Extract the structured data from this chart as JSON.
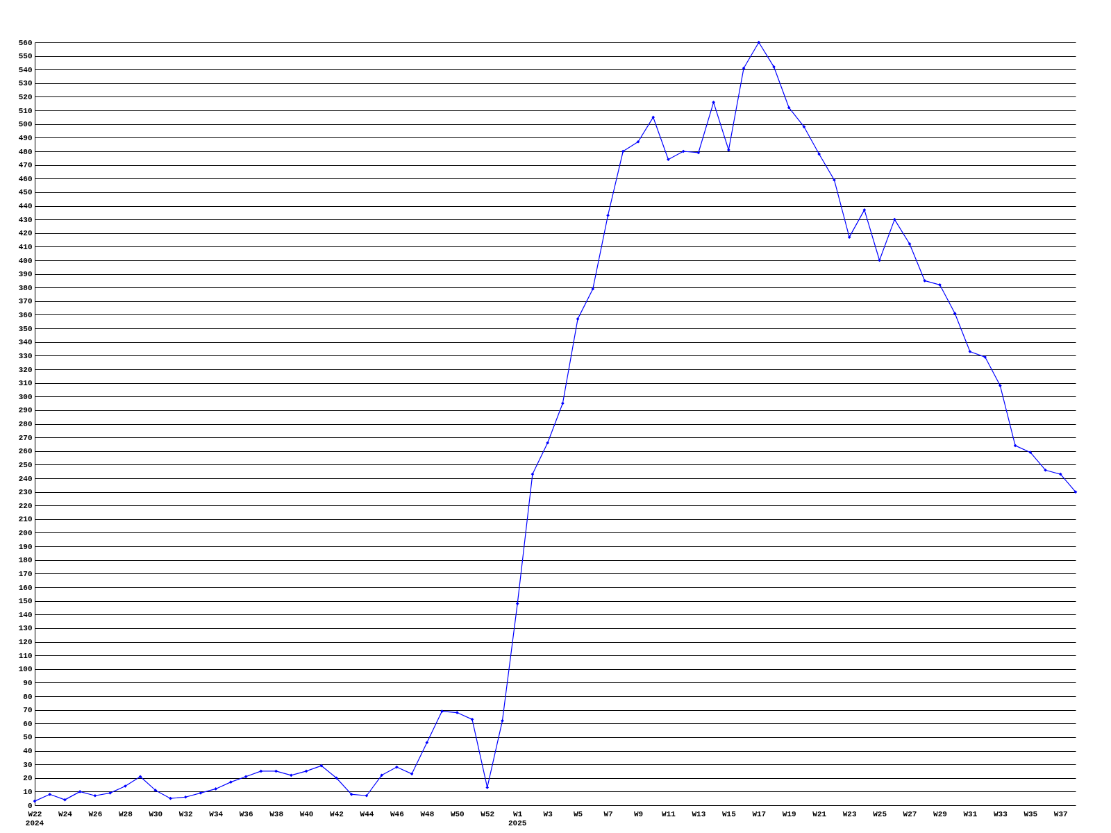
{
  "chart_data": {
    "type": "line",
    "categories": [
      "W22",
      null,
      "W24",
      null,
      "W26",
      null,
      "W28",
      null,
      "W30",
      null,
      "W32",
      null,
      "W34",
      null,
      "W36",
      null,
      "W38",
      null,
      "W40",
      null,
      "W42",
      null,
      "W44",
      null,
      "W46",
      null,
      "W48",
      null,
      "W50",
      null,
      "W52",
      null,
      "W1",
      null,
      "W3",
      null,
      "W5",
      null,
      "W7",
      null,
      "W9",
      null,
      "W11",
      null,
      "W13",
      null,
      "W15",
      null,
      "W17",
      null,
      "W19",
      null,
      "W21",
      null,
      "W23",
      null,
      "W25",
      null,
      "W27",
      null,
      "W29",
      null,
      "W31",
      null,
      "W33",
      null,
      "W35",
      null,
      "W37",
      null
    ],
    "series": [
      {
        "color": "#0000ff",
        "values": [
          3,
          8,
          4,
          10,
          7,
          9,
          14,
          21,
          11,
          5,
          6,
          9,
          12,
          17,
          21,
          25,
          25,
          22,
          25,
          29,
          20,
          8,
          7,
          22,
          28,
          23,
          46,
          69,
          68,
          63,
          13,
          62,
          148,
          243,
          266,
          295,
          357,
          379,
          433,
          480,
          487,
          505,
          474,
          480,
          479,
          516,
          481,
          541,
          560,
          542,
          512,
          498,
          478,
          459,
          417,
          437,
          400,
          430,
          412,
          385,
          382,
          361,
          333,
          329,
          308,
          264,
          259,
          246,
          243,
          230
        ]
      }
    ],
    "ylim": [
      0,
      560
    ],
    "yticks": [
      0,
      10,
      20,
      30,
      40,
      50,
      60,
      70,
      80,
      90,
      100,
      110,
      120,
      130,
      140,
      150,
      160,
      170,
      180,
      190,
      200,
      210,
      220,
      230,
      240,
      250,
      260,
      270,
      280,
      290,
      300,
      310,
      320,
      330,
      340,
      350,
      360,
      370,
      380,
      390,
      400,
      410,
      420,
      430,
      440,
      450,
      460,
      470,
      480,
      490,
      500,
      510,
      520,
      530,
      540,
      550,
      560
    ],
    "grid": "y",
    "marker": "diamond",
    "line_style": "solid",
    "annotations": [
      "2024",
      "2025"
    ]
  }
}
